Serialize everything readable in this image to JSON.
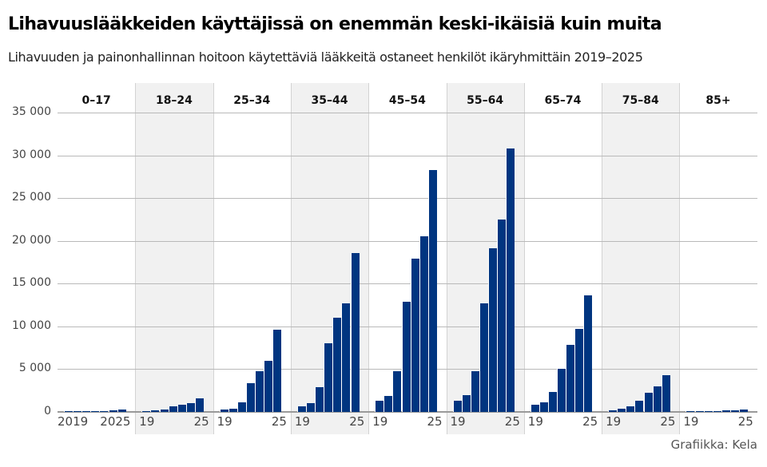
{
  "header": {
    "title": "Lihavuuslääkkeiden käyttäjissä on enemmän keski-ikäisiä kuin muita",
    "subtitle": "Lihavuuden ja painonhallinnan hoitoon käytettäviä lääkkeitä ostaneet henkilöt ikäryhmittäin 2019–2025"
  },
  "footer": {
    "source": "Grafiikka: Kela"
  },
  "colors": {
    "bar": "#003580",
    "shade": "#f1f1f1",
    "grid": "#b9b9b9"
  },
  "y_ticks": [
    "0",
    "5 000",
    "10 000",
    "15 000",
    "20 000",
    "25 000",
    "30 000",
    "35 000"
  ],
  "x_tick_first": {
    "start": "2019",
    "end": "2025"
  },
  "x_tick_other": {
    "start": "19",
    "end": "25"
  },
  "chart_data": {
    "type": "bar",
    "title": "Lihavuuslääkkeiden käyttäjissä on enemmän keski-ikäisiä kuin muita",
    "subtitle": "Lihavuuden ja painonhallinnan hoitoon käytettäviä lääkkeitä ostaneet henkilöt ikäryhmittäin 2019–2025",
    "xlabel": "",
    "ylabel": "",
    "ylim": [
      0,
      35000
    ],
    "y_ticks": [
      0,
      5000,
      10000,
      15000,
      20000,
      25000,
      30000,
      35000
    ],
    "grid": true,
    "legend": "none",
    "categories": [
      "2019",
      "2020",
      "2021",
      "2022",
      "2023",
      "2024",
      "2025"
    ],
    "facet_by": "Ikäryhmä",
    "series": [
      {
        "name": "0–17",
        "values": [
          20,
          30,
          50,
          80,
          120,
          200,
          300
        ]
      },
      {
        "name": "18–24",
        "values": [
          100,
          150,
          300,
          700,
          800,
          1000,
          1600
        ]
      },
      {
        "name": "25–34",
        "values": [
          250,
          400,
          1100,
          3400,
          4800,
          6000,
          9600
        ]
      },
      {
        "name": "35–44",
        "values": [
          700,
          1000,
          2900,
          8000,
          11000,
          12700,
          18600
        ]
      },
      {
        "name": "45–54",
        "values": [
          1300,
          1900,
          4800,
          12900,
          17900,
          20500,
          28300
        ]
      },
      {
        "name": "55–64",
        "values": [
          1300,
          2000,
          4800,
          12700,
          19100,
          22500,
          30800
        ]
      },
      {
        "name": "65–74",
        "values": [
          800,
          1100,
          2300,
          5000,
          7800,
          9700,
          13600
        ]
      },
      {
        "name": "75–84",
        "values": [
          200,
          350,
          700,
          1300,
          2200,
          3000,
          4300
        ]
      },
      {
        "name": "85+",
        "values": [
          40,
          60,
          80,
          100,
          150,
          200,
          280
        ]
      }
    ],
    "source": "Grafiikka: Kela"
  }
}
